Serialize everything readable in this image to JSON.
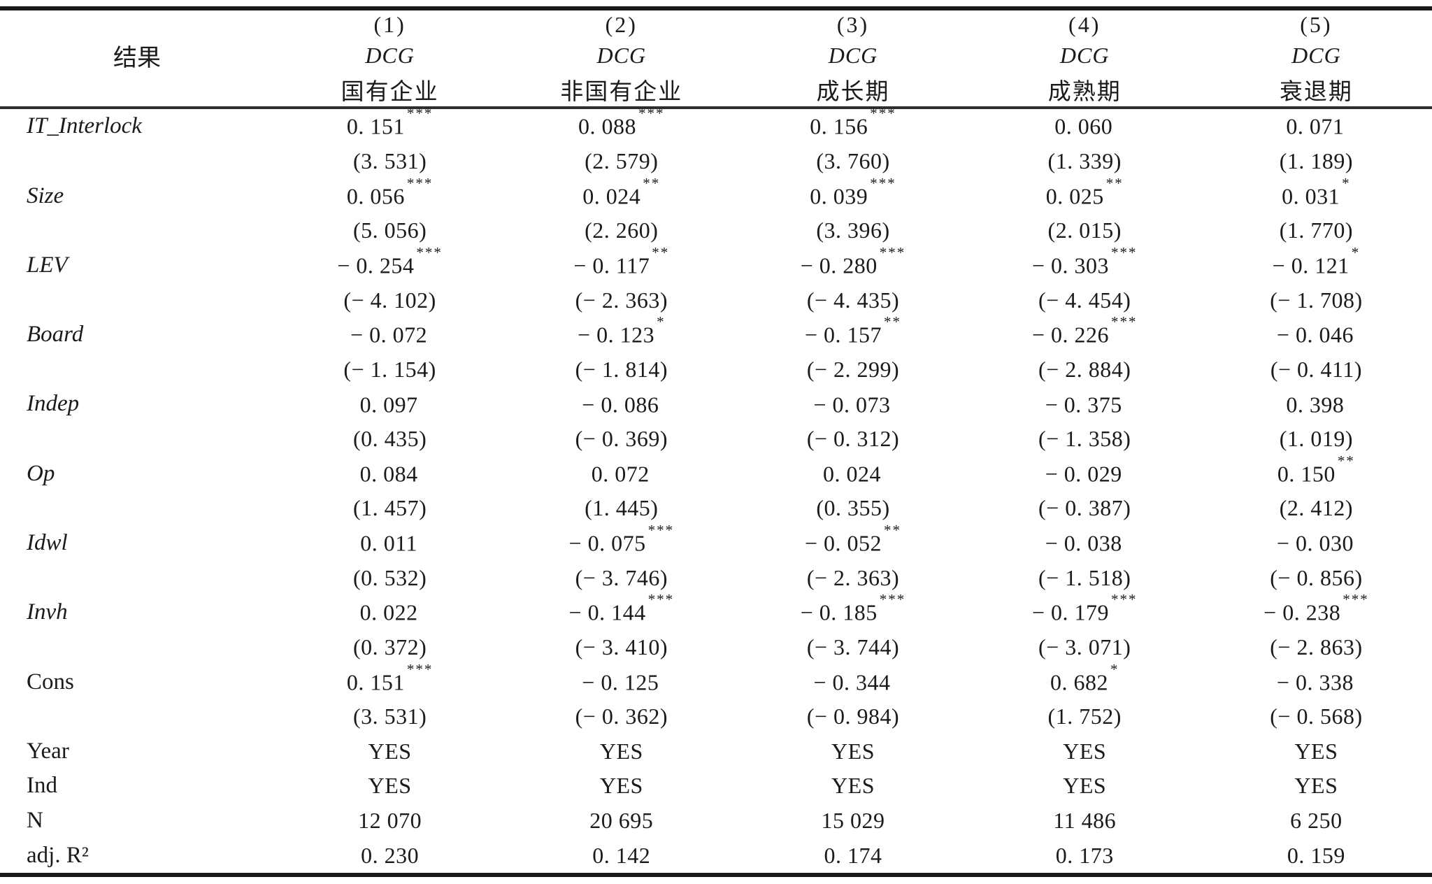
{
  "page": {
    "background": "#ffffff",
    "text_color": "#1b1b1b",
    "rule_color": "#1a1a1a"
  },
  "table": {
    "header": {
      "row_label": "结果",
      "columns": [
        {
          "num": "(1)",
          "dep": "DCG",
          "group": "国有企业"
        },
        {
          "num": "(2)",
          "dep": "DCG",
          "group": "非国有企业"
        },
        {
          "num": "(3)",
          "dep": "DCG",
          "group": "成长期"
        },
        {
          "num": "(4)",
          "dep": "DCG",
          "group": "成熟期"
        },
        {
          "num": "(5)",
          "dep": "DCG",
          "group": "衰退期"
        }
      ]
    },
    "rows": [
      {
        "label": "IT_Interlock",
        "italic": true,
        "cells": [
          {
            "coef": "0. 151",
            "sig": "***",
            "t": "(3. 531)"
          },
          {
            "coef": "0. 088",
            "sig": "***",
            "t": "(2. 579)"
          },
          {
            "coef": "0. 156",
            "sig": "***",
            "t": "(3. 760)"
          },
          {
            "coef": "0. 060",
            "sig": "",
            "t": "(1. 339)"
          },
          {
            "coef": "0. 071",
            "sig": "",
            "t": "(1. 189)"
          }
        ]
      },
      {
        "label": "Size",
        "italic": true,
        "cells": [
          {
            "coef": "0. 056",
            "sig": "***",
            "t": "(5. 056)"
          },
          {
            "coef": "0. 024",
            "sig": "**",
            "t": "(2. 260)"
          },
          {
            "coef": "0. 039",
            "sig": "***",
            "t": "(3. 396)"
          },
          {
            "coef": "0. 025",
            "sig": "**",
            "t": "(2. 015)"
          },
          {
            "coef": "0. 031",
            "sig": "*",
            "t": "(1. 770)"
          }
        ]
      },
      {
        "label": "LEV",
        "italic": true,
        "cells": [
          {
            "coef": "− 0. 254",
            "sig": "***",
            "t": "(− 4. 102)"
          },
          {
            "coef": "− 0. 117",
            "sig": "**",
            "t": "(− 2. 363)"
          },
          {
            "coef": "− 0. 280",
            "sig": "***",
            "t": "(− 4. 435)"
          },
          {
            "coef": "− 0. 303",
            "sig": "***",
            "t": "(− 4. 454)"
          },
          {
            "coef": "− 0. 121",
            "sig": "*",
            "t": "(− 1. 708)"
          }
        ]
      },
      {
        "label": "Board",
        "italic": true,
        "cells": [
          {
            "coef": "− 0. 072",
            "sig": "",
            "t": "(− 1. 154)"
          },
          {
            "coef": "− 0. 123",
            "sig": "*",
            "t": "(− 1. 814)"
          },
          {
            "coef": "− 0. 157",
            "sig": "**",
            "t": "(− 2. 299)"
          },
          {
            "coef": "− 0. 226",
            "sig": "***",
            "t": "(− 2. 884)"
          },
          {
            "coef": "− 0. 046",
            "sig": "",
            "t": "(− 0. 411)"
          }
        ]
      },
      {
        "label": "Indep",
        "italic": true,
        "cells": [
          {
            "coef": "0. 097",
            "sig": "",
            "t": "(0. 435)"
          },
          {
            "coef": "− 0. 086",
            "sig": "",
            "t": "(− 0. 369)"
          },
          {
            "coef": "− 0. 073",
            "sig": "",
            "t": "(− 0. 312)"
          },
          {
            "coef": "− 0. 375",
            "sig": "",
            "t": "(− 1. 358)"
          },
          {
            "coef": "0. 398",
            "sig": "",
            "t": "(1. 019)"
          }
        ]
      },
      {
        "label": "Op",
        "italic": true,
        "cells": [
          {
            "coef": "0. 084",
            "sig": "",
            "t": "(1. 457)"
          },
          {
            "coef": "0. 072",
            "sig": "",
            "t": "(1. 445)"
          },
          {
            "coef": "0. 024",
            "sig": "",
            "t": "(0. 355)"
          },
          {
            "coef": "− 0. 029",
            "sig": "",
            "t": "(− 0. 387)"
          },
          {
            "coef": "0. 150",
            "sig": "**",
            "t": "(2. 412)"
          }
        ]
      },
      {
        "label": "Idwl",
        "italic": true,
        "cells": [
          {
            "coef": "0. 011",
            "sig": "",
            "t": "(0. 532)"
          },
          {
            "coef": "− 0. 075",
            "sig": "***",
            "t": "(− 3. 746)"
          },
          {
            "coef": "− 0. 052",
            "sig": "**",
            "t": "(− 2. 363)"
          },
          {
            "coef": "− 0. 038",
            "sig": "",
            "t": "(− 1. 518)"
          },
          {
            "coef": "− 0. 030",
            "sig": "",
            "t": "(− 0. 856)"
          }
        ]
      },
      {
        "label": "Invh",
        "italic": true,
        "cells": [
          {
            "coef": "0. 022",
            "sig": "",
            "t": "(0. 372)"
          },
          {
            "coef": "− 0. 144",
            "sig": "***",
            "t": "(− 3. 410)"
          },
          {
            "coef": "− 0. 185",
            "sig": "***",
            "t": "(− 3. 744)"
          },
          {
            "coef": "− 0. 179",
            "sig": "***",
            "t": "(− 3. 071)"
          },
          {
            "coef": "− 0. 238",
            "sig": "***",
            "t": "(− 2. 863)"
          }
        ]
      },
      {
        "label": "Cons",
        "italic": false,
        "cells": [
          {
            "coef": "0. 151",
            "sig": "***",
            "t": "(3. 531)"
          },
          {
            "coef": "− 0. 125",
            "sig": "",
            "t": "(− 0. 362)"
          },
          {
            "coef": "− 0. 344",
            "sig": "",
            "t": "(− 0. 984)"
          },
          {
            "coef": "0. 682",
            "sig": "*",
            "t": "(1. 752)"
          },
          {
            "coef": "− 0. 338",
            "sig": "",
            "t": "(− 0. 568)"
          }
        ]
      }
    ],
    "stat_rows": [
      {
        "label": "Year",
        "values": [
          "YES",
          "YES",
          "YES",
          "YES",
          "YES"
        ]
      },
      {
        "label": "Ind",
        "values": [
          "YES",
          "YES",
          "YES",
          "YES",
          "YES"
        ]
      },
      {
        "label": "N",
        "values": [
          "12 070",
          "20 695",
          "15 029",
          "11 486",
          "6 250"
        ]
      },
      {
        "label": "adj. R²",
        "values": [
          "0. 230",
          "0. 142",
          "0. 174",
          "0. 173",
          "0. 159"
        ]
      }
    ]
  }
}
